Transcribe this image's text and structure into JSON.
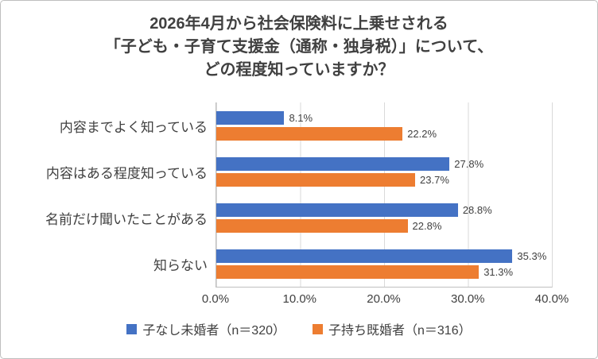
{
  "chart_data": {
    "type": "bar",
    "orientation": "horizontal",
    "title": "2026年4月から社会保険料に上乗せされる\n「子ども・子育て支援金（通称・独身税）」について、\nどの程度知っていますか？",
    "categories": [
      "内容までよく知っている",
      "内容はある程度知っている",
      "名前だけ聞いたことがある",
      "知らない"
    ],
    "series": [
      {
        "name": "子なし未婚者（n＝320）",
        "color": "#4472C4",
        "values": [
          8.1,
          27.8,
          28.8,
          35.3
        ]
      },
      {
        "name": "子持ち既婚者（n＝316）",
        "color": "#ED7D31",
        "values": [
          22.2,
          23.7,
          22.8,
          31.3
        ]
      }
    ],
    "xlim": [
      0,
      40
    ],
    "xticks": [
      "0.0%",
      "10.0%",
      "20.0%",
      "30.0%",
      "40.0%"
    ],
    "value_suffix": "%",
    "grid": "vertical",
    "legend_position": "bottom",
    "colors": {
      "gridline": "#d9d9d9",
      "axis": "#bfbfbf",
      "text": "#404040"
    }
  }
}
